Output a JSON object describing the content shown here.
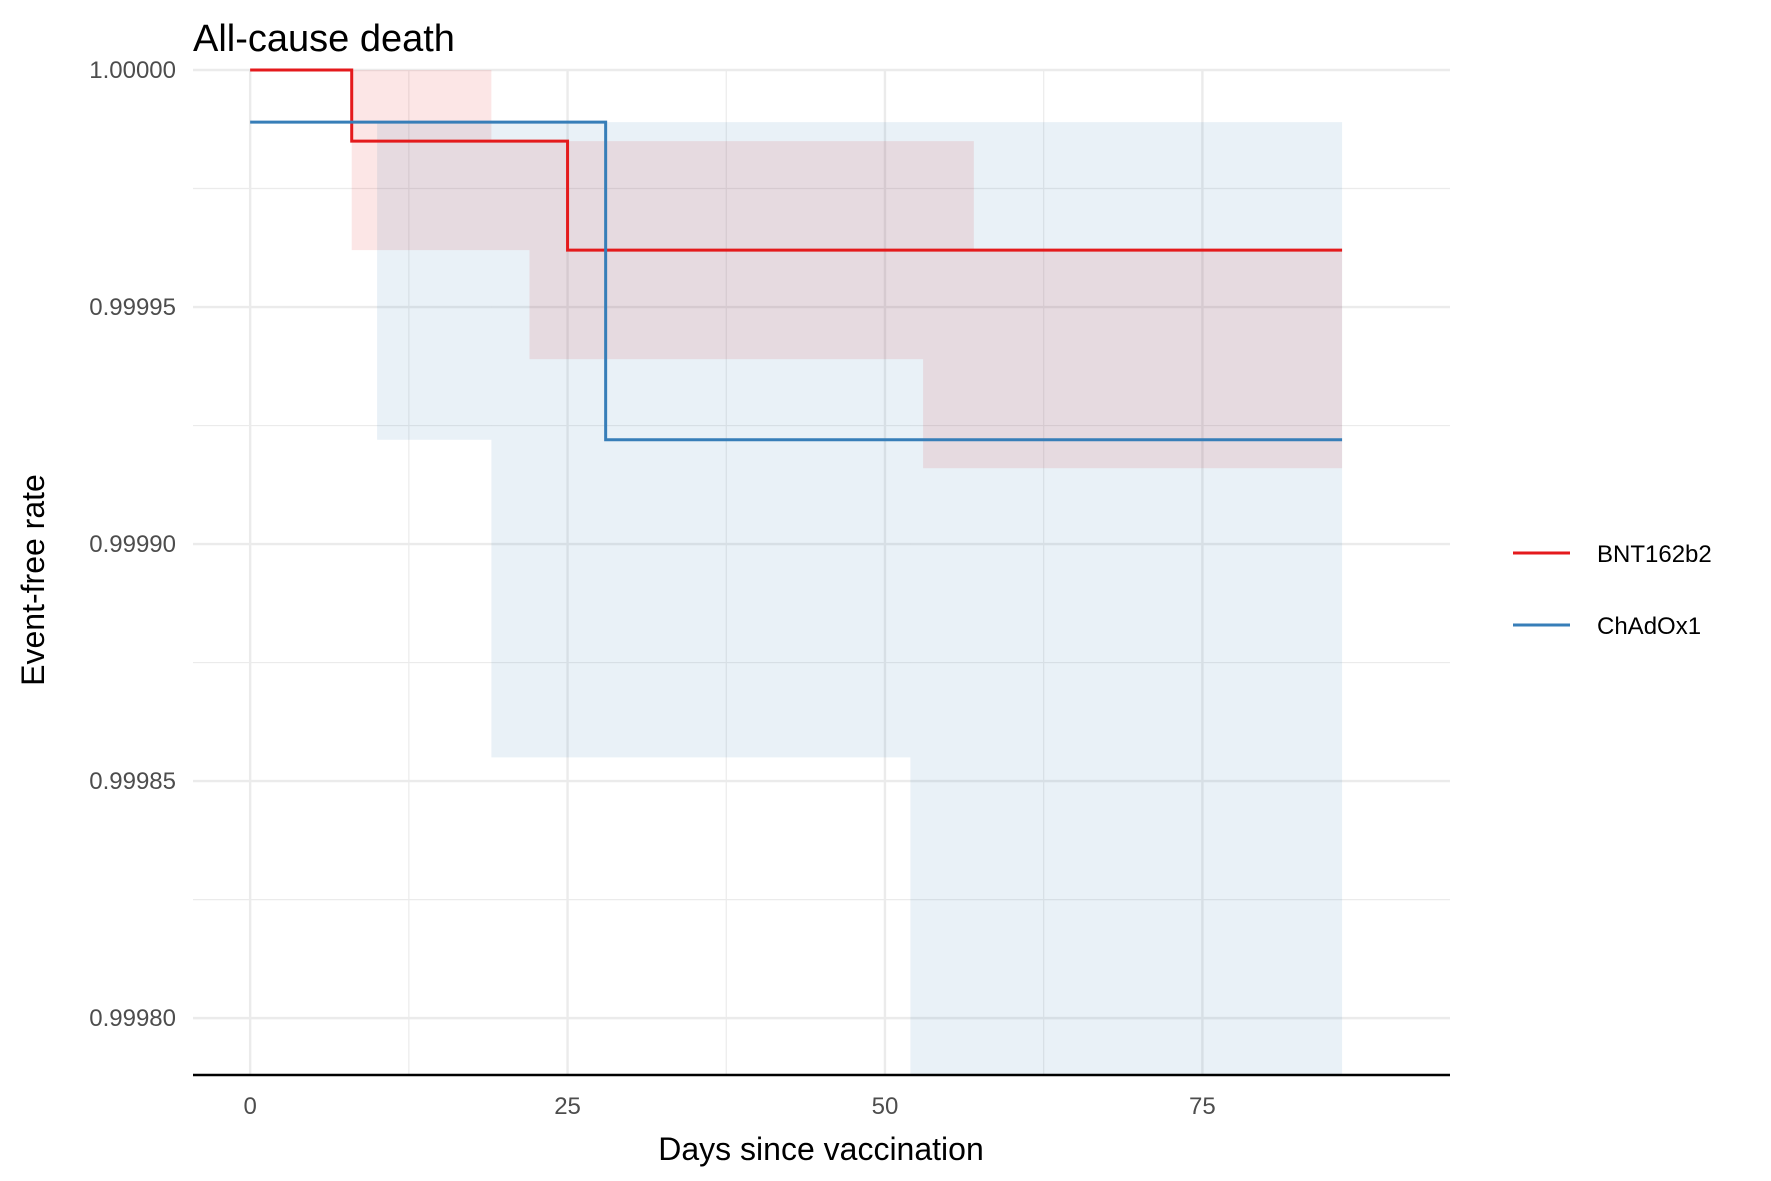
{
  "chart_data": {
    "type": "line",
    "subtype": "step-survival-with-confidence-band",
    "title": "All-cause death",
    "xlabel": "Days since vaccination",
    "ylabel": "Event-free rate",
    "xlim": [
      -4.5,
      94.5
    ],
    "ylim": [
      0.999788,
      1.0
    ],
    "x_ticks": [
      0,
      25,
      50,
      75
    ],
    "x_tick_labels": [
      "0",
      "25",
      "50",
      "75"
    ],
    "y_ticks": [
      0.9998,
      0.99985,
      0.9999,
      0.99995,
      1.0
    ],
    "y_tick_labels": [
      "0.99980",
      "0.99985",
      "0.99990",
      "0.99995",
      "1.00000"
    ],
    "grid": true,
    "legend_position": "right",
    "series": [
      {
        "name": "BNT162b2",
        "color": "#e41a1c",
        "steps": [
          [
            0,
            1.0
          ],
          [
            8,
            0.999985
          ],
          [
            25,
            0.999962
          ],
          [
            86,
            0.999962
          ]
        ],
        "ci": [
          {
            "x0": 8,
            "x1": 19,
            "low": 0.999962,
            "high": 1.0
          },
          {
            "x0": 19,
            "x1": 22,
            "low": 0.999962,
            "high": 0.999985
          },
          {
            "x0": 22,
            "x1": 53,
            "low": 0.999939,
            "high": 0.999985
          },
          {
            "x0": 53,
            "x1": 57,
            "low": 0.999916,
            "high": 0.999985
          },
          {
            "x0": 57,
            "x1": 86,
            "low": 0.999916,
            "high": 0.999962
          }
        ]
      },
      {
        "name": "ChAdOx1",
        "color": "#377eb8",
        "steps": [
          [
            0,
            0.999989
          ],
          [
            28,
            0.999922
          ],
          [
            86,
            0.999922
          ]
        ],
        "ci": [
          {
            "x0": 10,
            "x1": 19,
            "low": 0.999922,
            "high": 0.999989
          },
          {
            "x0": 19,
            "x1": 52,
            "low": 0.999855,
            "high": 0.999989
          },
          {
            "x0": 52,
            "x1": 86,
            "low": 0.999788,
            "high": 0.999989
          }
        ]
      }
    ]
  }
}
